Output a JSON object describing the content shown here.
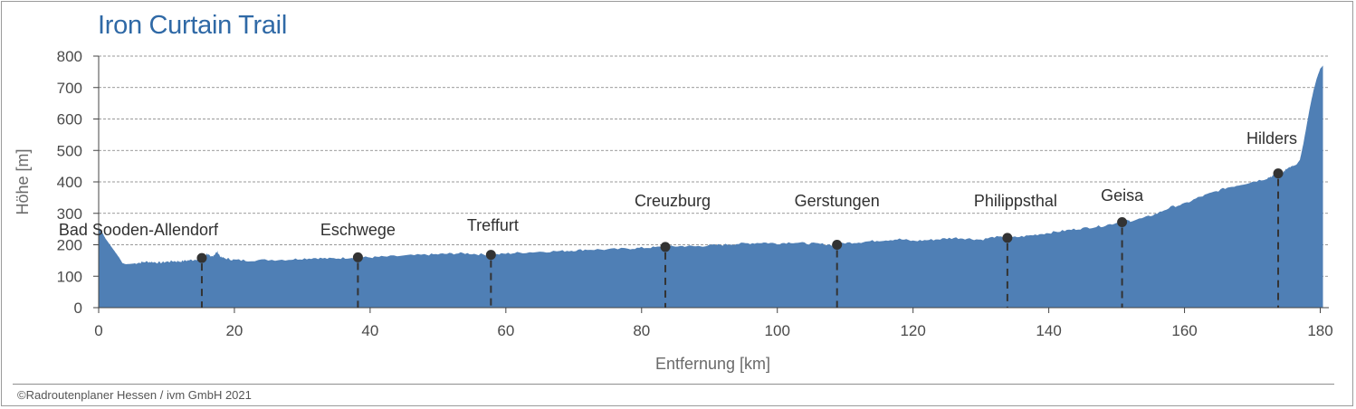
{
  "chart_data": {
    "type": "area",
    "title": "Iron Curtain Trail",
    "xlabel": "Entfernung [km]",
    "ylabel": "Höhe [m]",
    "xlim": [
      0,
      181
    ],
    "ylim": [
      0,
      800
    ],
    "x_ticks": [
      "0",
      "20",
      "40",
      "60",
      "80",
      "100",
      "120",
      "140",
      "160",
      "180"
    ],
    "y_ticks": [
      "0",
      "100",
      "200",
      "300",
      "400",
      "500",
      "600",
      "700",
      "800"
    ],
    "grid": "horizontal dashed",
    "color": "#4f7fb5",
    "profile": {
      "x": [
        0,
        0.5,
        1,
        2,
        3,
        3.5,
        4,
        5,
        6,
        7,
        8,
        9,
        10,
        11,
        12,
        13,
        14,
        15,
        15.5,
        16,
        16.5,
        17,
        17.5,
        18,
        19,
        20,
        22,
        25,
        28,
        30,
        32,
        34,
        36,
        38,
        40,
        42,
        45,
        48,
        50,
        52,
        54,
        56,
        58,
        60,
        62,
        65,
        68,
        70,
        72,
        75,
        78,
        80,
        82,
        84,
        86,
        88,
        90,
        92,
        94,
        96,
        98,
        100,
        102,
        104,
        106,
        108,
        110,
        112,
        114,
        116,
        118,
        120,
        122,
        124,
        126,
        128,
        130,
        132,
        134,
        136,
        138,
        140,
        142,
        144,
        146,
        148,
        150,
        151,
        152,
        154,
        156,
        158,
        160,
        162,
        164,
        166,
        168,
        170,
        172,
        173,
        174,
        174.5,
        175,
        175.5,
        176,
        176.5,
        177,
        177.5,
        178,
        178.5,
        179,
        179.5,
        180,
        180.4
      ],
      "y": [
        255,
        240,
        220,
        190,
        160,
        142,
        138,
        140,
        143,
        146,
        145,
        143,
        146,
        148,
        147,
        150,
        152,
        158,
        165,
        172,
        160,
        168,
        178,
        160,
        155,
        152,
        150,
        152,
        153,
        156,
        158,
        156,
        158,
        160,
        160,
        162,
        165,
        168,
        170,
        172,
        173,
        170,
        168,
        172,
        175,
        178,
        180,
        182,
        185,
        185,
        188,
        190,
        192,
        194,
        196,
        195,
        198,
        200,
        203,
        205,
        207,
        204,
        208,
        205,
        203,
        200,
        206,
        208,
        212,
        215,
        218,
        212,
        215,
        218,
        222,
        220,
        216,
        225,
        222,
        226,
        232,
        238,
        244,
        250,
        255,
        260,
        270,
        278,
        276,
        285,
        300,
        320,
        330,
        350,
        365,
        380,
        390,
        400,
        410,
        420,
        425,
        430,
        440,
        445,
        450,
        455,
        470,
        520,
        580,
        640,
        690,
        730,
        760,
        770
      ]
    },
    "places": [
      {
        "name": "Bad Sooden-Allendorf",
        "km": 15.2,
        "elev": 158
      },
      {
        "name": "Eschwege",
        "km": 38.2,
        "elev": 160
      },
      {
        "name": "Treffurt",
        "km": 57.8,
        "elev": 168
      },
      {
        "name": "Creuzburg",
        "km": 83.5,
        "elev": 193
      },
      {
        "name": "Gerstungen",
        "km": 108.8,
        "elev": 200
      },
      {
        "name": "Philippsthal",
        "km": 133.9,
        "elev": 222
      },
      {
        "name": "Geisa",
        "km": 150.8,
        "elev": 272
      },
      {
        "name": "Hilders",
        "km": 173.8,
        "elev": 427
      }
    ]
  },
  "footer": {
    "credit": "©Radroutenplaner Hessen / ivm GmbH 2021"
  }
}
